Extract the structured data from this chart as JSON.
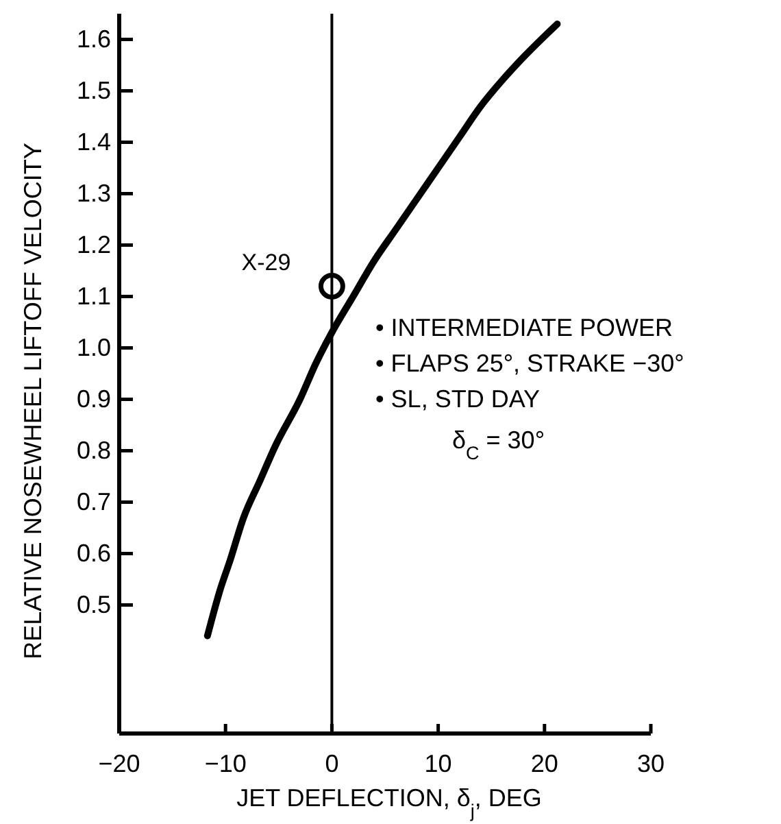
{
  "chart_data": {
    "type": "line",
    "xlabel": "JET DEFLECTION, δ$_{j}$, DEG",
    "ylabel": "RELATIVE NOSEWHEEL LIFTOFF VELOCITY",
    "xlim": [
      -20,
      30
    ],
    "xticks": [
      {
        "value": -20,
        "label": "−20"
      },
      {
        "value": -10,
        "label": "−10"
      },
      0,
      10,
      20,
      30
    ],
    "ylim": [
      0.25,
      1.65
    ],
    "yticks": [
      0.5,
      0.6,
      0.7,
      0.8,
      0.9,
      {
        "value": 1.0,
        "label": "1.0"
      },
      1.1,
      1.2,
      1.3,
      1.4,
      1.5,
      1.6
    ],
    "series": [
      {
        "color": "#000000",
        "x": [
          -11.7,
          -10.5,
          -9.6,
          -8.3,
          -6.8,
          -5.3,
          -3,
          -1.5,
          0,
          2,
          4,
          6,
          8,
          10,
          12,
          14,
          16,
          18,
          21.2
        ],
        "values": [
          0.44,
          0.53,
          0.585,
          0.67,
          0.74,
          0.81,
          0.9,
          0.97,
          1.03,
          1.1,
          1.17,
          1.23,
          1.29,
          1.35,
          1.41,
          1.47,
          1.52,
          1.565,
          1.63
        ]
      },
      {
        "type": "scatter",
        "name": "X-29",
        "color": "#000000",
        "marker": "circle",
        "x": [
          0
        ],
        "values": [
          1.12
        ]
      }
    ],
    "ref_lines": [
      {
        "axis": "x",
        "value": 0,
        "color": "#000000"
      }
    ],
    "annotations": [
      "• INTERMEDIATE POWER",
      "• FLAPS 25°, STRAKE −30°",
      "• SL, STD DAY",
      "δ$_{C}$ = 30°"
    ],
    "grid": false
  }
}
